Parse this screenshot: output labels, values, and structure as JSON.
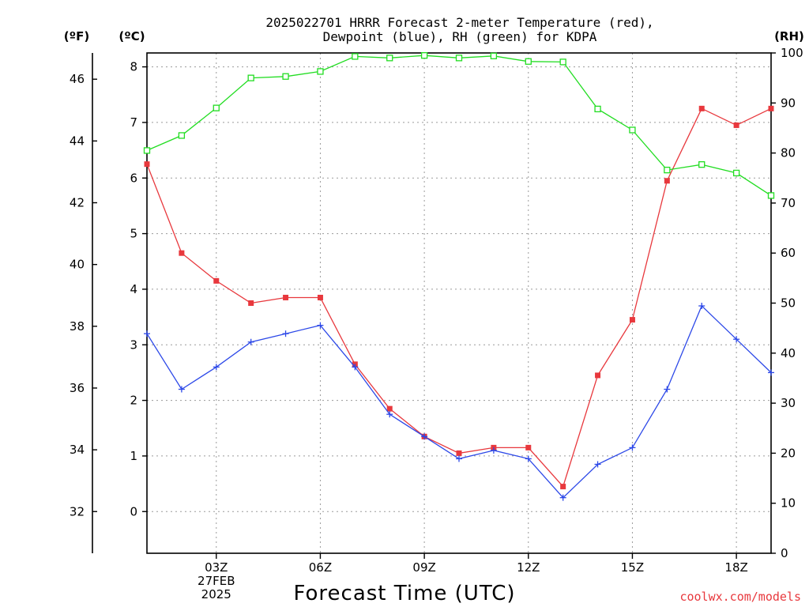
{
  "chart_data": {
    "type": "line",
    "title_lines": [
      "2025022701 HRRR Forecast 2-meter Temperature (red),",
      "Dewpoint (blue), RH (green) for KDPA"
    ],
    "xlabel": "Forecast Time (UTC)",
    "credit": "coolwx.com/models",
    "x_range": [
      1,
      19
    ],
    "x_ticks": [
      {
        "x": 3,
        "lines": [
          "03Z",
          "27FEB",
          "2025"
        ]
      },
      {
        "x": 6,
        "lines": [
          "06Z"
        ]
      },
      {
        "x": 9,
        "lines": [
          "09Z"
        ]
      },
      {
        "x": 12,
        "lines": [
          "12Z"
        ]
      },
      {
        "x": 15,
        "lines": [
          "15Z"
        ]
      },
      {
        "x": 18,
        "lines": [
          "18Z"
        ]
      }
    ],
    "axes": {
      "celsius": {
        "unit": "(ºC)",
        "range": [
          -0.75,
          8.25
        ],
        "ticks": [
          0,
          1,
          2,
          3,
          4,
          5,
          6,
          7,
          8
        ]
      },
      "fahrenheit": {
        "unit": "(ºF)",
        "range": [
          30.65,
          46.85
        ],
        "ticks": [
          32,
          34,
          36,
          38,
          40,
          42,
          44,
          46
        ]
      },
      "rh": {
        "unit": "(RH)",
        "range": [
          0,
          100
        ],
        "ticks": [
          0,
          10,
          20,
          30,
          40,
          50,
          60,
          70,
          80,
          90,
          100
        ]
      }
    },
    "grid": true,
    "series": [
      {
        "name": "Temperature",
        "color": "#e8383d",
        "axis": "celsius",
        "marker": "filled-square",
        "x": [
          1,
          2,
          3,
          4,
          5,
          6,
          7,
          8,
          9,
          10,
          11,
          12,
          13,
          14,
          15,
          16,
          17,
          18,
          19
        ],
        "values": [
          6.25,
          4.65,
          4.15,
          3.75,
          3.85,
          3.85,
          2.65,
          1.85,
          1.35,
          1.05,
          1.15,
          1.15,
          0.45,
          2.45,
          3.45,
          5.95,
          7.25,
          6.95,
          7.25
        ]
      },
      {
        "name": "Dewpoint",
        "color": "#2c48e8",
        "axis": "celsius",
        "marker": "plus",
        "x": [
          1,
          2,
          3,
          4,
          5,
          6,
          7,
          8,
          9,
          10,
          11,
          12,
          13,
          14,
          15,
          16,
          17,
          18,
          19
        ],
        "values": [
          3.2,
          2.2,
          2.6,
          3.05,
          3.2,
          3.35,
          2.6,
          1.75,
          1.35,
          0.95,
          1.1,
          0.95,
          0.25,
          0.85,
          1.15,
          2.2,
          3.7,
          3.1,
          2.5
        ]
      },
      {
        "name": "RH",
        "color": "#22dd22",
        "axis": "rh",
        "marker": "open-square",
        "x": [
          1,
          2,
          3,
          4,
          5,
          6,
          7,
          8,
          9,
          10,
          11,
          12,
          13,
          14,
          15,
          16,
          17,
          18,
          19
        ],
        "values": [
          80.5,
          83.5,
          89,
          95,
          95.3,
          96.3,
          99.3,
          99,
          99.5,
          99,
          99.4,
          98.3,
          98.2,
          88.8,
          84.6,
          76.6,
          77.7,
          76,
          71.5
        ]
      }
    ]
  }
}
